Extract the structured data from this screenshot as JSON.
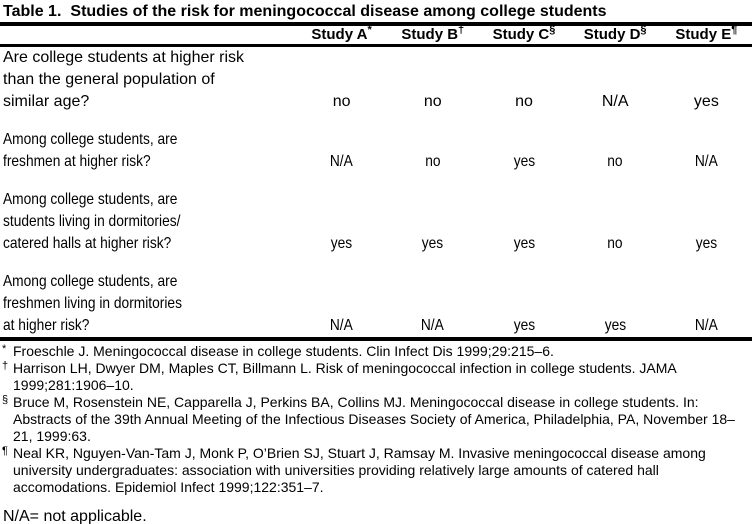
{
  "page": {
    "title": {
      "label": "Table 1.",
      "text": "Studies of the risk for meningococcal disease among college students"
    }
  },
  "table": {
    "columns": [
      {
        "label": "Study A",
        "marker": "*"
      },
      {
        "label": "Study B",
        "marker": "†"
      },
      {
        "label": "Study C",
        "marker": "§"
      },
      {
        "label": "Study D",
        "marker": "§"
      },
      {
        "label": "Study E",
        "marker": "¶"
      }
    ],
    "rows": [
      {
        "question": "Are college students at higher risk\nthan the general population of\nsimilar age?",
        "answers": [
          "no",
          "no",
          "no",
          "N/A",
          "yes"
        ]
      },
      {
        "question": "Among college students, are\nfreshmen at higher risk?",
        "answers": [
          "N/A",
          "no",
          "yes",
          "no",
          "N/A"
        ]
      },
      {
        "question": "Among college students, are\nstudents living in dormitories/\ncatered halls at higher risk?",
        "answers": [
          "yes",
          "yes",
          "yes",
          "no",
          "yes"
        ]
      },
      {
        "question": "Among college students, are\nfreshmen living in dormitories\nat higher risk?",
        "answers": [
          "N/A",
          "N/A",
          "yes",
          "yes",
          "N/A"
        ]
      }
    ]
  },
  "footnotes": [
    {
      "marker": "*",
      "text": "Froeschle J. Meningococcal disease in college students. Clin Infect Dis 1999;29:215–6."
    },
    {
      "marker": "†",
      "text": "Harrison LH, Dwyer DM, Maples CT, Billmann L. Risk of meningococcal infection in college students. JAMA 1999;281:1906–10."
    },
    {
      "marker": "§",
      "text": "Bruce M, Rosenstein NE, Capparella J, Perkins BA, Collins MJ. Meningococcal disease in college students. In: Abstracts of the 39th Annual Meeting of the Infectious Diseases Society of America, Philadelphia, PA, November 18–21, 1999:63."
    },
    {
      "marker": "¶",
      "text": "Neal KR, Nguyen-Van-Tam J, Monk P, O’Brien SJ, Stuart J, Ramsay M. Invasive meningococcal disease among university undergraduates: association with universities providing relatively large amounts of catered hall accomodations. Epidemiol Infect 1999;122:351–7."
    }
  ],
  "na_note": "N/A= not applicable."
}
